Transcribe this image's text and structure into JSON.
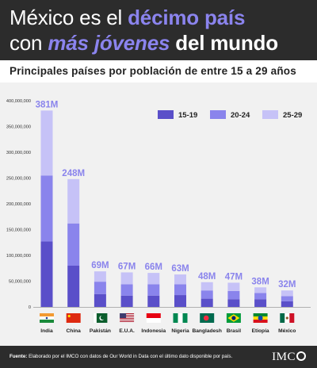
{
  "header": {
    "title_line1_a": "México es el ",
    "title_line1_b": "décimo país",
    "title_line2_a": "con ",
    "title_line2_b": "más jóvenes",
    "title_line2_c": " del mundo"
  },
  "subtitle": "Principales países por población de entre 15 a 29 años",
  "footer": {
    "note_label": "Fuente:",
    "note_text": " Elaborado por el IMCO con datos de Our World in Data con el último dato disponible por país.",
    "logo_text": "IMC"
  },
  "colors": {
    "s15": "#5a4fc9",
    "s20": "#8a84ec",
    "s25": "#c6c2f7",
    "total_label": "#8a84ec",
    "header_bg": "#2c2c2c"
  },
  "chart_data": {
    "type": "bar",
    "stacked": true,
    "categories": [
      "India",
      "China",
      "Pakistán",
      "E.U.A.",
      "Indonesia",
      "Nigeria",
      "Bangladesh",
      "Brasil",
      "Etiopía",
      "México"
    ],
    "flags": [
      "india-flag-icon",
      "china-flag-icon",
      "pakistan-flag-icon",
      "usa-flag-icon",
      "indonesia-flag-icon",
      "nigeria-flag-icon",
      "bangladesh-flag-icon",
      "brazil-flag-icon",
      "ethiopia-flag-icon",
      "mexico-flag-icon"
    ],
    "series": [
      {
        "name": "15-19",
        "values": [
          127000000,
          80000000,
          25000000,
          22000000,
          22000000,
          23000000,
          16000000,
          15000000,
          15000000,
          11000000
        ]
      },
      {
        "name": "20-24",
        "values": [
          128000000,
          82000000,
          24000000,
          22000000,
          22000000,
          21000000,
          16000000,
          16000000,
          12000000,
          10000000
        ]
      },
      {
        "name": "25-29",
        "values": [
          126000000,
          86000000,
          20000000,
          23000000,
          22000000,
          19000000,
          16000000,
          16000000,
          11000000,
          11000000
        ]
      }
    ],
    "totals": [
      "381M",
      "248M",
      "69M",
      "67M",
      "66M",
      "63M",
      "48M",
      "47M",
      "38M",
      "32M"
    ],
    "yticks": [
      "0",
      "50,000,000",
      "100,000,000",
      "150,000,000",
      "200,000,000",
      "250,000,000",
      "300,000,000",
      "350,000,000",
      "400,000,000"
    ],
    "ylim": [
      0,
      400000000
    ],
    "grid": false,
    "legend_position": "top-right"
  }
}
